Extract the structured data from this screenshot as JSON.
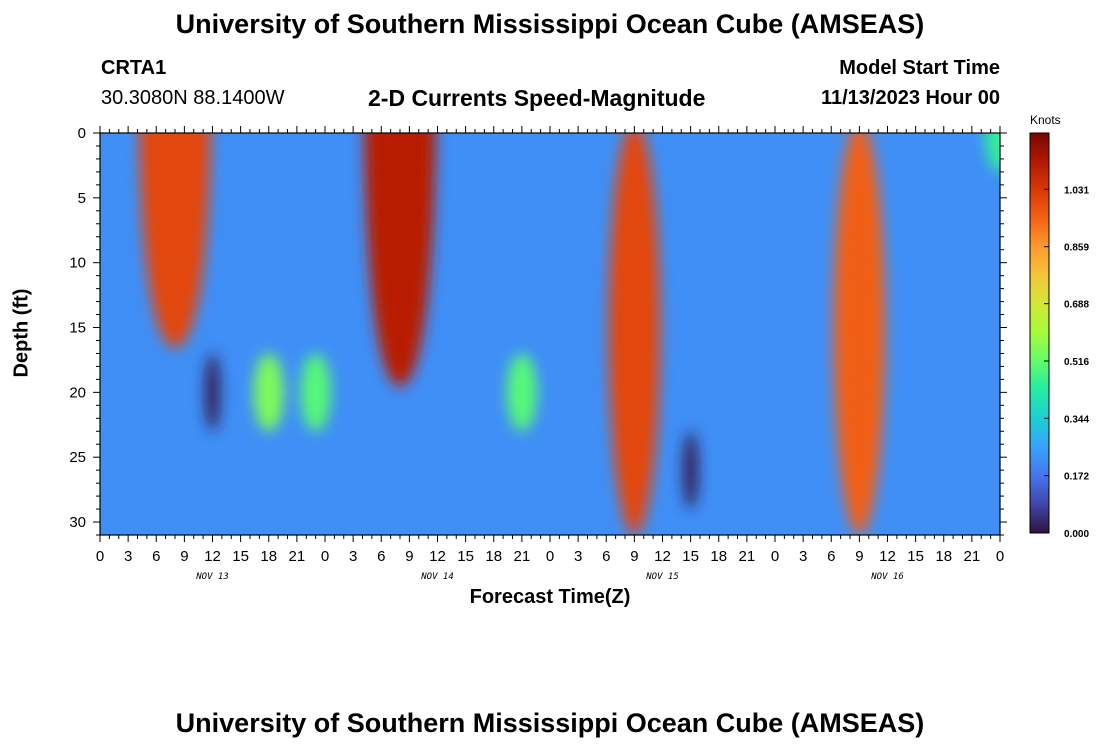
{
  "header": {
    "title": "University of Southern Mississippi Ocean Cube (AMSEAS)",
    "station": "CRTA1",
    "coords": "30.3080N  88.1400W",
    "subtitle": "2-D Currents Speed-Magnitude",
    "model_start_label": "Model Start Time",
    "model_start_value": "11/13/2023 Hour 00"
  },
  "footer": {
    "title": "University of Southern Mississippi Ocean Cube (AMSEAS)"
  },
  "colorbar": {
    "unit": "Knots",
    "ticks": [
      "0.000",
      "0.172",
      "0.344",
      "0.516",
      "0.688",
      "0.859",
      "1.031"
    ],
    "min": 0,
    "max": 1.2,
    "colors": [
      "#30123b",
      "#4145ab",
      "#4675ed",
      "#39a2fc",
      "#1bcfd4",
      "#24eca6",
      "#61fc6c",
      "#a4fc3b",
      "#d1e834",
      "#f3c63a",
      "#fe9b2d",
      "#f36315",
      "#d93806",
      "#b11901",
      "#7a0403"
    ]
  },
  "chart_data": {
    "type": "heatmap",
    "title": "2-D Currents Speed-Magnitude",
    "xlabel": "Forecast Time(Z)",
    "ylabel": "Depth (ft)",
    "xlim": [
      0,
      96
    ],
    "ylim": [
      31,
      0
    ],
    "x_tick_labels": [
      "0",
      "3",
      "6",
      "9",
      "12",
      "15",
      "18",
      "21",
      "0",
      "3",
      "6",
      "9",
      "12",
      "15",
      "18",
      "21",
      "0",
      "3",
      "6",
      "9",
      "12",
      "15",
      "18",
      "21",
      "0",
      "3",
      "6",
      "9",
      "12",
      "15",
      "18",
      "21",
      "0"
    ],
    "y_ticks": [
      0,
      5,
      10,
      15,
      20,
      25,
      30
    ],
    "y_tick_labels": [
      "0",
      "5",
      "10",
      "15",
      "20",
      "25",
      "30"
    ],
    "day_labels": [
      "NOV 13",
      "NOV 14",
      "NOV 15",
      "NOV 16"
    ],
    "value_unit": "Knots",
    "features": [
      {
        "desc": "surface maximum",
        "hour": 8,
        "depth_top": 0,
        "depth_bottom": 16,
        "speed": 1.0
      },
      {
        "desc": "surface maximum",
        "hour": 32,
        "depth_top": 0,
        "depth_bottom": 19,
        "speed": 1.1
      },
      {
        "desc": "full-depth maximum",
        "hour": 57,
        "depth_top": 0,
        "depth_bottom": 31,
        "speed": 1.0
      },
      {
        "desc": "full-depth maximum",
        "hour": 81,
        "depth_top": 0,
        "depth_bottom": 31,
        "speed": 0.95
      },
      {
        "desc": "subsurface core",
        "hour": 18,
        "depth": 20,
        "speed": 0.55
      },
      {
        "desc": "subsurface core",
        "hour": 23,
        "depth": 20,
        "speed": 0.5
      },
      {
        "desc": "subsurface core",
        "hour": 45,
        "depth": 20,
        "speed": 0.5
      },
      {
        "desc": "minimum",
        "hour": 12,
        "depth": 20,
        "speed": 0.02
      },
      {
        "desc": "minimum",
        "hour": 63,
        "depth": 26,
        "speed": 0.02
      },
      {
        "desc": "surface increase",
        "hour": 96,
        "depth": 0,
        "speed": 0.45
      }
    ]
  }
}
